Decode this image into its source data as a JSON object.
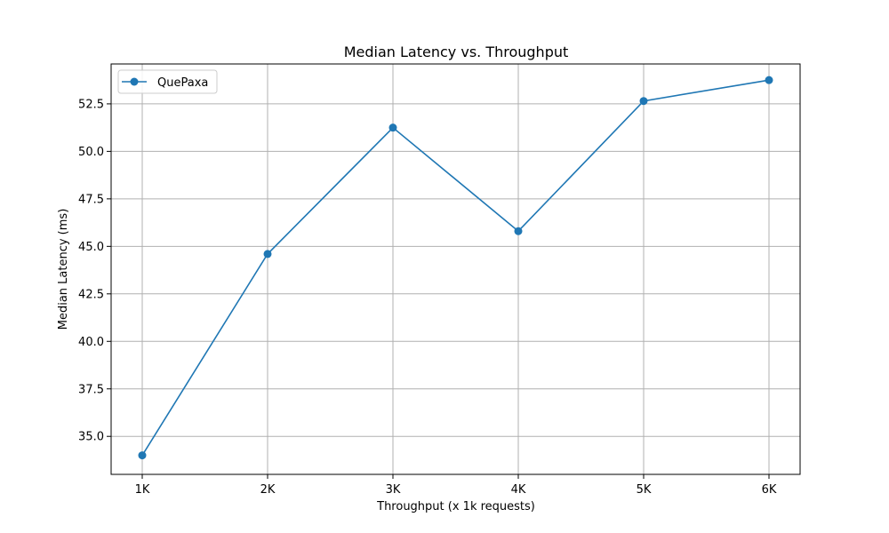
{
  "chart_data": {
    "type": "line",
    "title": "Median Latency vs. Throughput",
    "xlabel": "Throughput (x 1k requests)",
    "ylabel": "Median Latency (ms)",
    "categories": [
      "1K",
      "2K",
      "3K",
      "4K",
      "5K",
      "6K"
    ],
    "series": [
      {
        "name": "QuePaxa",
        "values": [
          34.0,
          44.6,
          51.25,
          45.8,
          52.65,
          53.75
        ],
        "color": "#1f77b4"
      }
    ],
    "y_ticks": [
      "35.0",
      "37.5",
      "40.0",
      "42.5",
      "45.0",
      "47.5",
      "50.0",
      "52.5"
    ],
    "ylim": [
      33.0,
      54.6
    ],
    "grid": true,
    "legend_position": "top-left",
    "marker": "circle"
  }
}
